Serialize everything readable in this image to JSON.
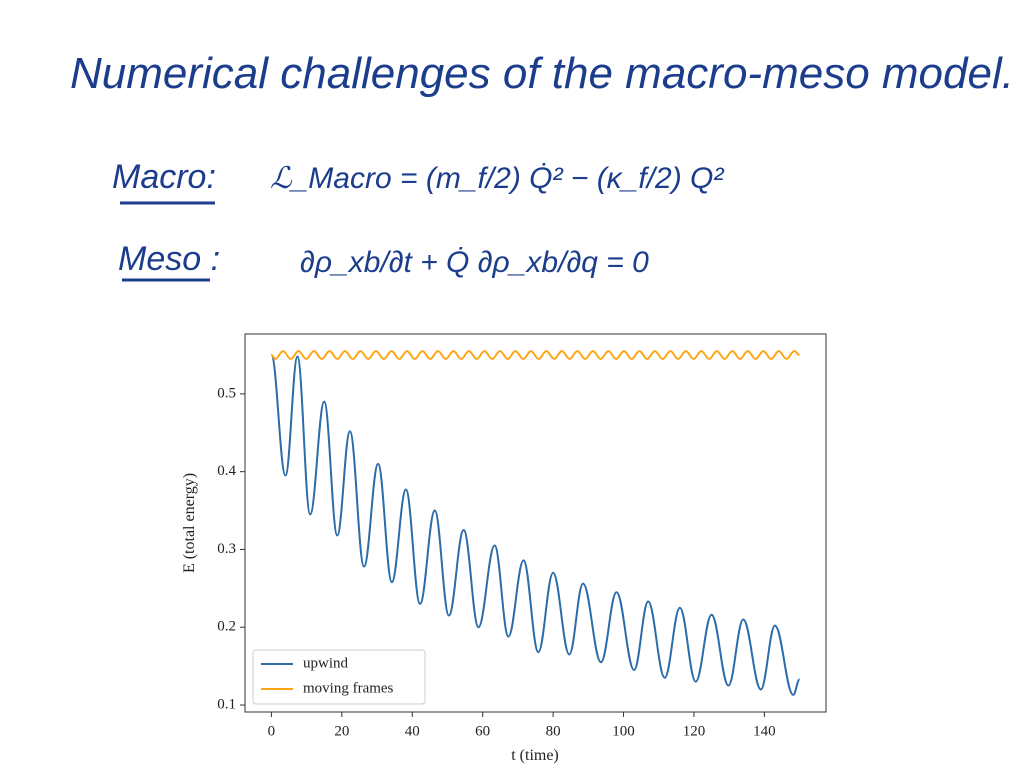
{
  "slide": {
    "title": "Numerical challenges of the macro-meso model.",
    "macro": {
      "label": "Macro:",
      "equation": "ℒ_Macro = (m_f/2) Q̇² − (κ_f/2) Q²"
    },
    "meso": {
      "label": "Meso :",
      "equation": "∂ρ_xb/∂t + Q̇ ∂ρ_xb/∂q = 0"
    }
  },
  "chart_data": {
    "type": "line",
    "xlabel": "t (time)",
    "ylabel": "E (total energy)",
    "xlim": [
      -7.5,
      157.5
    ],
    "ylim": [
      0.091,
      0.577
    ],
    "xticks": [
      0,
      20,
      40,
      60,
      80,
      100,
      120,
      140
    ],
    "yticks": [
      0.1,
      0.2,
      0.3,
      0.4,
      0.5
    ],
    "legend": "lower left",
    "series": [
      {
        "name": "upwind",
        "color": "#2c6cab",
        "x": [
          0,
          4,
          7.4,
          11,
          15,
          18.7,
          22.3,
          26.3,
          30.3,
          34.2,
          38.2,
          42.2,
          46.4,
          50.4,
          54.6,
          58.8,
          63.4,
          67.3,
          71.6,
          75.8,
          80,
          84.6,
          88.5,
          93.6,
          98,
          103,
          107,
          111.7,
          116,
          120.5,
          125,
          129.8,
          134,
          139,
          143,
          148.2,
          150
        ],
        "values": [
          0.55,
          0.395,
          0.548,
          0.345,
          0.49,
          0.318,
          0.452,
          0.278,
          0.41,
          0.258,
          0.377,
          0.23,
          0.35,
          0.215,
          0.325,
          0.2,
          0.305,
          0.188,
          0.286,
          0.168,
          0.27,
          0.165,
          0.256,
          0.155,
          0.245,
          0.145,
          0.233,
          0.135,
          0.225,
          0.13,
          0.216,
          0.125,
          0.21,
          0.12,
          0.202,
          0.113,
          0.133
        ]
      },
      {
        "name": "moving frames",
        "color": "#ffa514",
        "x": [
          0,
          1.1,
          3.3,
          5.5,
          7.7,
          9.9,
          12.1,
          14.3,
          16.5,
          18.7,
          20.9,
          23.1,
          25.3,
          27.5,
          29.7,
          31.9,
          34.1,
          36.3,
          38.5,
          40.7,
          42.9,
          45.1,
          47.3,
          49.5,
          51.7,
          53.9,
          56.1,
          58.3,
          60.5,
          62.7,
          64.9,
          67.1,
          69.3,
          71.5,
          73.7,
          75.9,
          78.1,
          80.3,
          82.5,
          84.7,
          86.9,
          89.1,
          91.3,
          93.5,
          95.7,
          97.9,
          100.1,
          102.3,
          104.5,
          106.7,
          108.9,
          111.1,
          113.3,
          115.5,
          117.7,
          119.9,
          122.1,
          124.3,
          126.5,
          128.7,
          130.9,
          133.1,
          135.3,
          137.5,
          139.7,
          141.9,
          144.1,
          146.3,
          148.5,
          150
        ],
        "values": [
          0.55,
          0.545,
          0.555,
          0.545,
          0.555,
          0.545,
          0.555,
          0.545,
          0.555,
          0.545,
          0.555,
          0.545,
          0.555,
          0.545,
          0.555,
          0.545,
          0.555,
          0.545,
          0.555,
          0.545,
          0.555,
          0.545,
          0.555,
          0.545,
          0.555,
          0.545,
          0.555,
          0.545,
          0.555,
          0.545,
          0.555,
          0.545,
          0.555,
          0.545,
          0.555,
          0.545,
          0.555,
          0.545,
          0.555,
          0.545,
          0.555,
          0.545,
          0.555,
          0.545,
          0.555,
          0.545,
          0.555,
          0.545,
          0.555,
          0.545,
          0.555,
          0.545,
          0.555,
          0.545,
          0.555,
          0.545,
          0.555,
          0.545,
          0.555,
          0.545,
          0.555,
          0.545,
          0.555,
          0.545,
          0.555,
          0.545,
          0.555,
          0.545,
          0.555,
          0.55
        ]
      }
    ]
  }
}
